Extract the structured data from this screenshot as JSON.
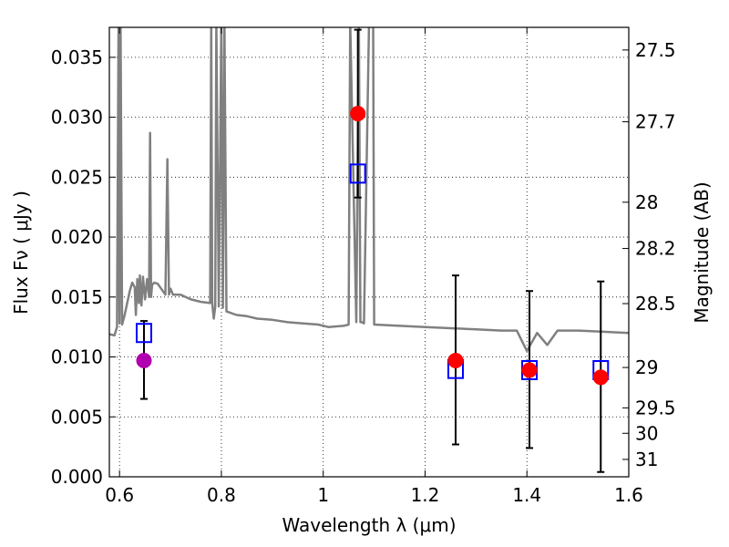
{
  "chart_data": {
    "type": "scatter",
    "xlabel": "Wavelength  λ (μm)",
    "ylabel": "Flux  Fν  ( μJy )",
    "ylabel_right": "Magnitude (AB)",
    "xlim": [
      0.58,
      1.6
    ],
    "ylim": [
      0.0,
      0.0375
    ],
    "grid": true,
    "x_ticks": [
      {
        "value": 0.6,
        "label": "0.6"
      },
      {
        "value": 0.8,
        "label": "0.8"
      },
      {
        "value": 1.0,
        "label": "1"
      },
      {
        "value": 1.2,
        "label": "1.2"
      },
      {
        "value": 1.4,
        "label": "1.4"
      },
      {
        "value": 1.6,
        "label": "1.6"
      }
    ],
    "y_ticks": [
      {
        "value": 0.0,
        "label": "0.000"
      },
      {
        "value": 0.005,
        "label": "0.005"
      },
      {
        "value": 0.01,
        "label": "0.010"
      },
      {
        "value": 0.015,
        "label": "0.015"
      },
      {
        "value": 0.02,
        "label": "0.020"
      },
      {
        "value": 0.025,
        "label": "0.025"
      },
      {
        "value": 0.03,
        "label": "0.030"
      },
      {
        "value": 0.035,
        "label": "0.035"
      }
    ],
    "y_right_ticks": [
      {
        "flux": 0.03561,
        "label": "27.5"
      },
      {
        "flux": 0.02962,
        "label": "27.7"
      },
      {
        "flux": 0.02291,
        "label": "28"
      },
      {
        "flux": 0.01905,
        "label": "28.2"
      },
      {
        "flux": 0.01445,
        "label": "28.5"
      },
      {
        "flux": 0.00912,
        "label": "29"
      },
      {
        "flux": 0.00575,
        "label": "29.5"
      },
      {
        "flux": 0.00363,
        "label": "30"
      },
      {
        "flux": 0.00145,
        "label": "31"
      }
    ],
    "series": [
      {
        "kind": "model_spectrum",
        "color": "#808080",
        "x": [
          0.58,
          0.59,
          0.595,
          0.598,
          0.6,
          0.602,
          0.605,
          0.61,
          0.615,
          0.62,
          0.625,
          0.63,
          0.632,
          0.635,
          0.638,
          0.64,
          0.643,
          0.646,
          0.65,
          0.654,
          0.658,
          0.66,
          0.662,
          0.664,
          0.668,
          0.675,
          0.69,
          0.694,
          0.697,
          0.7,
          0.705,
          0.72,
          0.74,
          0.76,
          0.778,
          0.78,
          0.782,
          0.785,
          0.788,
          0.79,
          0.795,
          0.8,
          0.803,
          0.806,
          0.81,
          0.83,
          0.85,
          0.87,
          0.9,
          0.93,
          0.96,
          0.99,
          1.01,
          1.04,
          1.05,
          1.053,
          1.065,
          1.07,
          1.073,
          1.076,
          1.08,
          1.09,
          1.098,
          1.1,
          1.15,
          1.2,
          1.25,
          1.3,
          1.35,
          1.38,
          1.4,
          1.42,
          1.44,
          1.46,
          1.5,
          1.55,
          1.6
        ],
        "y": [
          0.0119,
          0.0118,
          0.0125,
          0.038,
          0.0128,
          0.038,
          0.0127,
          0.0135,
          0.0145,
          0.0155,
          0.0162,
          0.0158,
          0.0135,
          0.0165,
          0.0145,
          0.0168,
          0.0143,
          0.0167,
          0.0148,
          0.0165,
          0.015,
          0.0287,
          0.015,
          0.016,
          0.0162,
          0.0161,
          0.0152,
          0.0265,
          0.0152,
          0.0157,
          0.0152,
          0.0152,
          0.0148,
          0.0146,
          0.0145,
          0.038,
          0.0145,
          0.0132,
          0.0142,
          0.038,
          0.0142,
          0.038,
          0.0141,
          0.038,
          0.0138,
          0.0135,
          0.0134,
          0.0132,
          0.0131,
          0.0129,
          0.0128,
          0.0127,
          0.0125,
          0.0126,
          0.0127,
          0.038,
          0.0129,
          0.038,
          0.0129,
          0.0129,
          0.0128,
          0.038,
          0.038,
          0.0127,
          0.0126,
          0.0125,
          0.0124,
          0.0123,
          0.0122,
          0.0122,
          0.0105,
          0.012,
          0.011,
          0.0122,
          0.0122,
          0.0121,
          0.012
        ]
      },
      {
        "kind": "observed_points",
        "color": "#ff0000",
        "x": [
          1.068,
          1.26,
          1.405,
          1.545
        ],
        "y": [
          0.0303,
          0.0097,
          0.0089,
          0.0083
        ],
        "yerr_low": [
          0.0233,
          0.0027,
          0.0024,
          0.0004
        ],
        "yerr_high": [
          0.0373,
          0.0168,
          0.0155,
          0.0163
        ]
      },
      {
        "kind": "observed_point_optical",
        "color": "#b000b0",
        "x": [
          0.648
        ],
        "y": [
          0.0097
        ],
        "yerr_low": [
          0.0065
        ],
        "yerr_high": [
          0.013
        ]
      },
      {
        "kind": "model_photometry",
        "color": "#0000ff",
        "x": [
          0.648,
          1.068,
          1.26,
          1.405,
          1.545
        ],
        "y": [
          0.012,
          0.0253,
          0.009,
          0.0089,
          0.0089
        ]
      }
    ]
  }
}
